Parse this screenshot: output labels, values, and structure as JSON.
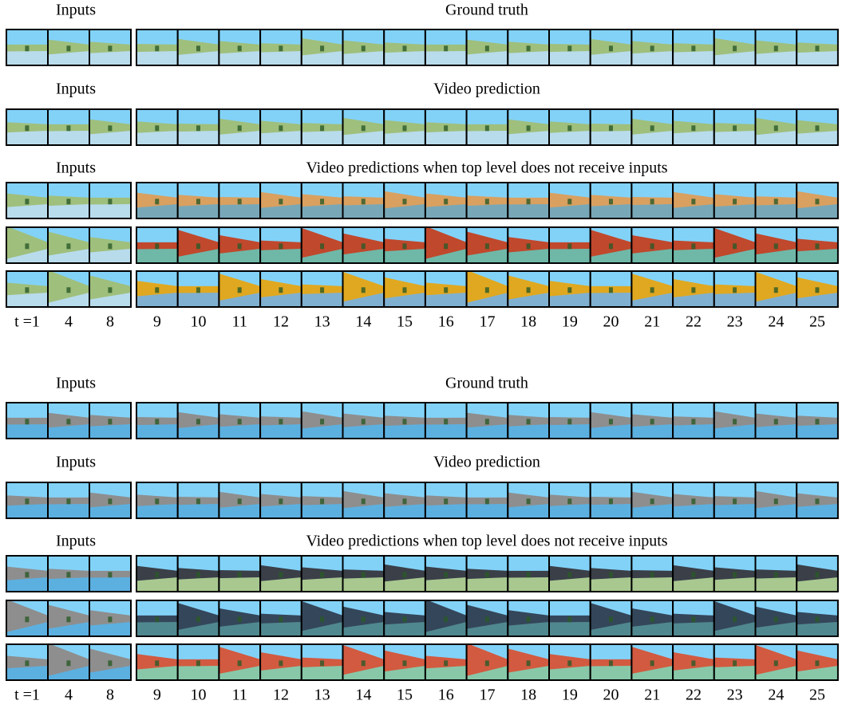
{
  "panels": [
    {
      "sections": [
        {
          "inputs_label": "Inputs",
          "title": "Ground truth"
        },
        {
          "inputs_label": "Inputs",
          "title": "Video prediction"
        },
        {
          "inputs_label": "Inputs",
          "title": "Video predictions when top level does not receive inputs"
        }
      ],
      "time_labels": [
        "t =1",
        "4",
        "8",
        "9",
        "10",
        "11",
        "12",
        "13",
        "14",
        "15",
        "16",
        "17",
        "18",
        "19",
        "20",
        "21",
        "22",
        "23",
        "24",
        "25"
      ]
    },
    {
      "sections": [
        {
          "inputs_label": "Inputs",
          "title": "Ground truth"
        },
        {
          "inputs_label": "Inputs",
          "title": "Video prediction"
        },
        {
          "inputs_label": "Inputs",
          "title": "Video predictions when top level does not receive inputs"
        }
      ],
      "time_labels": [
        "t =1",
        "4",
        "8",
        "9",
        "10",
        "11",
        "12",
        "13",
        "14",
        "15",
        "16",
        "17",
        "18",
        "19",
        "20",
        "21",
        "22",
        "23",
        "24",
        "25"
      ]
    }
  ]
}
